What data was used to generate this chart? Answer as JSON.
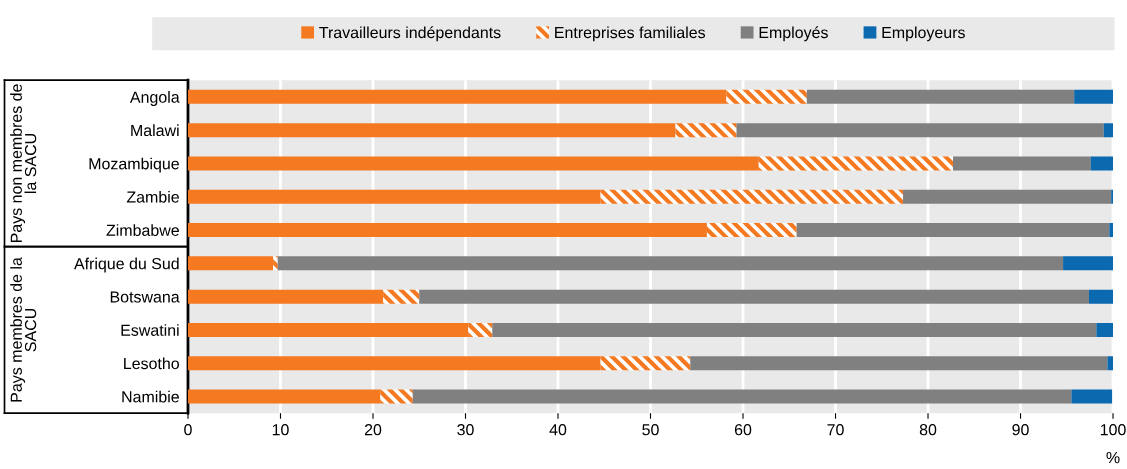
{
  "chart_data": {
    "type": "bar",
    "orientation": "horizontal",
    "stacked": true,
    "categories": [
      "Angola",
      "Malawi",
      "Mozambique",
      "Zambie",
      "Zimbabwe",
      "Afrique du Sud",
      "Botswana",
      "Eswatini",
      "Lesotho",
      "Namibie"
    ],
    "series": [
      {
        "name": "Travailleurs indépendants",
        "color": "#f47920",
        "values": [
          58.2,
          52.7,
          61.7,
          44.6,
          56.1,
          9.2,
          21.1,
          30.3,
          44.6,
          20.8
        ]
      },
      {
        "name": "Entreprises familiales",
        "color": "#f47920",
        "values": [
          8.7,
          6.6,
          21.0,
          32.7,
          9.7,
          0.5,
          3.9,
          2.6,
          9.7,
          3.5
        ]
      },
      {
        "name": "Employés",
        "color": "#808080",
        "values": [
          28.9,
          39.7,
          14.9,
          22.5,
          33.8,
          84.9,
          72.4,
          65.3,
          45.1,
          71.2
        ]
      },
      {
        "name": "Employeurs",
        "color": "#0b69b0",
        "values": [
          4.2,
          1.0,
          2.4,
          0.2,
          0.4,
          5.4,
          2.6,
          1.8,
          0.6,
          4.4
        ]
      }
    ],
    "xlabel": "%",
    "xlim": [
      0,
      100
    ],
    "xticks": [
      0,
      10,
      20,
      30,
      40,
      50,
      60,
      70,
      80,
      90,
      100
    ],
    "grid": "x",
    "legend": "top",
    "annotations": [
      "Pays non membres de\nla SACU",
      "Pays membres de la\nSACU"
    ]
  }
}
